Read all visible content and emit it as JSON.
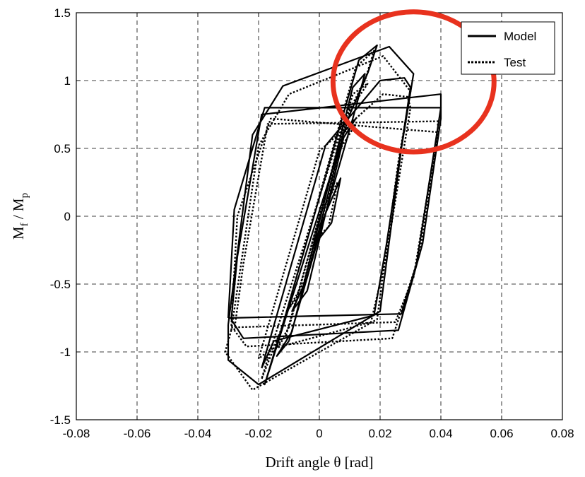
{
  "chart_data": {
    "type": "line",
    "xlabel": "Drift angle θ [rad]",
    "ylabel_main": "M",
    "ylabel_sub1": "f",
    "ylabel_mid": " / M",
    "ylabel_sub2": "p",
    "xlim": [
      -0.08,
      0.08
    ],
    "ylim": [
      -1.5,
      1.5
    ],
    "xticks": [
      -0.08,
      -0.06,
      -0.04,
      -0.02,
      0,
      0.02,
      0.04,
      0.06,
      0.08
    ],
    "yticks": [
      -1.5,
      -1,
      -0.5,
      0,
      0.5,
      1,
      1.5
    ],
    "xtick_labels": [
      "-0.08",
      "-0.06",
      "-0.04",
      "-0.02",
      "0",
      "0.02",
      "0.04",
      "0.06",
      "0.08"
    ],
    "ytick_labels": [
      "-1.5",
      "-1",
      "-0.5",
      "0",
      "0.5",
      "1",
      "1.5"
    ],
    "grid": true,
    "legend_position": "top-right",
    "highlight": {
      "shape": "circle",
      "color": "#e8321e",
      "center": [
        0.031,
        0.99
      ],
      "radius_x": 0.0265
    },
    "series": [
      {
        "name": "Model",
        "style": "solid",
        "color": "#000000",
        "loops": [
          [
            [
              0.004,
              -0.05
            ],
            [
              0.007,
              0.28
            ],
            [
              0.002,
              0.02
            ],
            [
              -0.002,
              -0.22
            ],
            [
              0.004,
              -0.05
            ]
          ],
          [
            [
              -0.004,
              -0.55
            ],
            [
              0.008,
              0.58
            ],
            [
              0.012,
              0.72
            ],
            [
              0.008,
              0.62
            ],
            [
              -0.004,
              -0.45
            ],
            [
              -0.009,
              -0.7
            ],
            [
              -0.004,
              -0.55
            ]
          ],
          [
            [
              -0.01,
              -0.92
            ],
            [
              0.011,
              0.72
            ],
            [
              0.015,
              1.05
            ],
            [
              0.011,
              0.95
            ],
            [
              -0.009,
              -0.85
            ],
            [
              -0.014,
              -1.03
            ],
            [
              -0.01,
              -0.92
            ]
          ],
          [
            [
              -0.016,
              -1.1
            ],
            [
              0.01,
              0.75
            ],
            [
              0.016,
              1.06
            ],
            [
              0.019,
              1.26
            ],
            [
              0.013,
              1.15
            ],
            [
              -0.011,
              -0.72
            ],
            [
              -0.018,
              -1.24
            ],
            [
              -0.016,
              -1.1
            ]
          ],
          [
            [
              -0.019,
              -1.12
            ],
            [
              0.002,
              0.52
            ],
            [
              0.02,
              1.0
            ],
            [
              0.028,
              1.02
            ],
            [
              0.03,
              0.95
            ],
            [
              0.022,
              -0.22
            ],
            [
              0.018,
              -0.73
            ],
            [
              -0.015,
              -0.92
            ],
            [
              -0.019,
              -1.12
            ]
          ],
          [
            [
              -0.03,
              -0.8
            ],
            [
              -0.022,
              0.6
            ],
            [
              -0.012,
              0.96
            ],
            [
              0.023,
              1.25
            ],
            [
              0.031,
              1.05
            ],
            [
              0.027,
              0.5
            ],
            [
              0.02,
              -0.7
            ],
            [
              -0.02,
              -1.24
            ],
            [
              -0.03,
              -1.06
            ],
            [
              -0.03,
              -0.8
            ]
          ],
          [
            [
              -0.029,
              -0.76
            ],
            [
              -0.027,
              -0.3
            ],
            [
              -0.019,
              0.75
            ],
            [
              0.04,
              0.9
            ],
            [
              0.04,
              0.72
            ],
            [
              0.034,
              -0.2
            ],
            [
              0.026,
              -0.84
            ],
            [
              -0.025,
              -0.9
            ],
            [
              -0.029,
              -0.76
            ]
          ],
          [
            [
              -0.03,
              -0.75
            ],
            [
              0.027,
              -0.72
            ],
            [
              0.032,
              -0.35
            ],
            [
              0.04,
              0.8
            ],
            [
              -0.018,
              0.8
            ],
            [
              -0.028,
              0.05
            ],
            [
              -0.03,
              -0.75
            ]
          ]
        ]
      },
      {
        "name": "Test",
        "style": "dotted",
        "color": "#000000",
        "loops": [
          [
            [
              0.003,
              -0.08
            ],
            [
              0.006,
              0.25
            ],
            [
              0.001,
              0.05
            ],
            [
              -0.002,
              -0.18
            ],
            [
              0.003,
              -0.08
            ]
          ],
          [
            [
              -0.005,
              -0.52
            ],
            [
              0.007,
              0.5
            ],
            [
              0.012,
              0.68
            ],
            [
              0.007,
              0.6
            ],
            [
              -0.005,
              -0.48
            ],
            [
              -0.01,
              -0.68
            ],
            [
              -0.005,
              -0.52
            ]
          ],
          [
            [
              -0.011,
              -0.88
            ],
            [
              0.01,
              0.78
            ],
            [
              0.016,
              0.98
            ],
            [
              0.011,
              0.9
            ],
            [
              -0.01,
              -0.82
            ],
            [
              -0.015,
              -1.0
            ],
            [
              -0.011,
              -0.88
            ]
          ],
          [
            [
              -0.017,
              -1.05
            ],
            [
              0.008,
              0.7
            ],
            [
              0.015,
              1.0
            ],
            [
              0.018,
              1.22
            ],
            [
              0.012,
              1.1
            ],
            [
              -0.012,
              -0.8
            ],
            [
              -0.019,
              -1.2
            ],
            [
              -0.017,
              -1.05
            ]
          ],
          [
            [
              -0.02,
              -1.05
            ],
            [
              0.0,
              0.48
            ],
            [
              0.021,
              0.9
            ],
            [
              0.029,
              0.88
            ],
            [
              0.03,
              0.8
            ],
            [
              0.022,
              -0.3
            ],
            [
              0.017,
              -0.78
            ],
            [
              -0.016,
              -0.98
            ],
            [
              -0.02,
              -1.05
            ]
          ],
          [
            [
              -0.029,
              -0.84
            ],
            [
              -0.02,
              0.52
            ],
            [
              -0.01,
              0.9
            ],
            [
              0.021,
              1.18
            ],
            [
              0.03,
              0.92
            ],
            [
              0.026,
              0.4
            ],
            [
              0.019,
              -0.76
            ],
            [
              -0.022,
              -1.28
            ],
            [
              -0.031,
              -1.0
            ],
            [
              -0.029,
              -0.84
            ]
          ],
          [
            [
              -0.028,
              -0.84
            ],
            [
              -0.025,
              -0.35
            ],
            [
              -0.017,
              0.68
            ],
            [
              0.039,
              0.7
            ],
            [
              0.039,
              0.58
            ],
            [
              0.033,
              -0.28
            ],
            [
              0.024,
              -0.9
            ],
            [
              -0.024,
              -0.96
            ],
            [
              -0.028,
              -0.84
            ]
          ],
          [
            [
              -0.029,
              -0.82
            ],
            [
              0.025,
              -0.78
            ],
            [
              0.031,
              -0.45
            ],
            [
              0.039,
              0.62
            ],
            [
              -0.016,
              0.72
            ],
            [
              -0.027,
              0.0
            ],
            [
              -0.029,
              -0.82
            ]
          ]
        ]
      }
    ]
  }
}
